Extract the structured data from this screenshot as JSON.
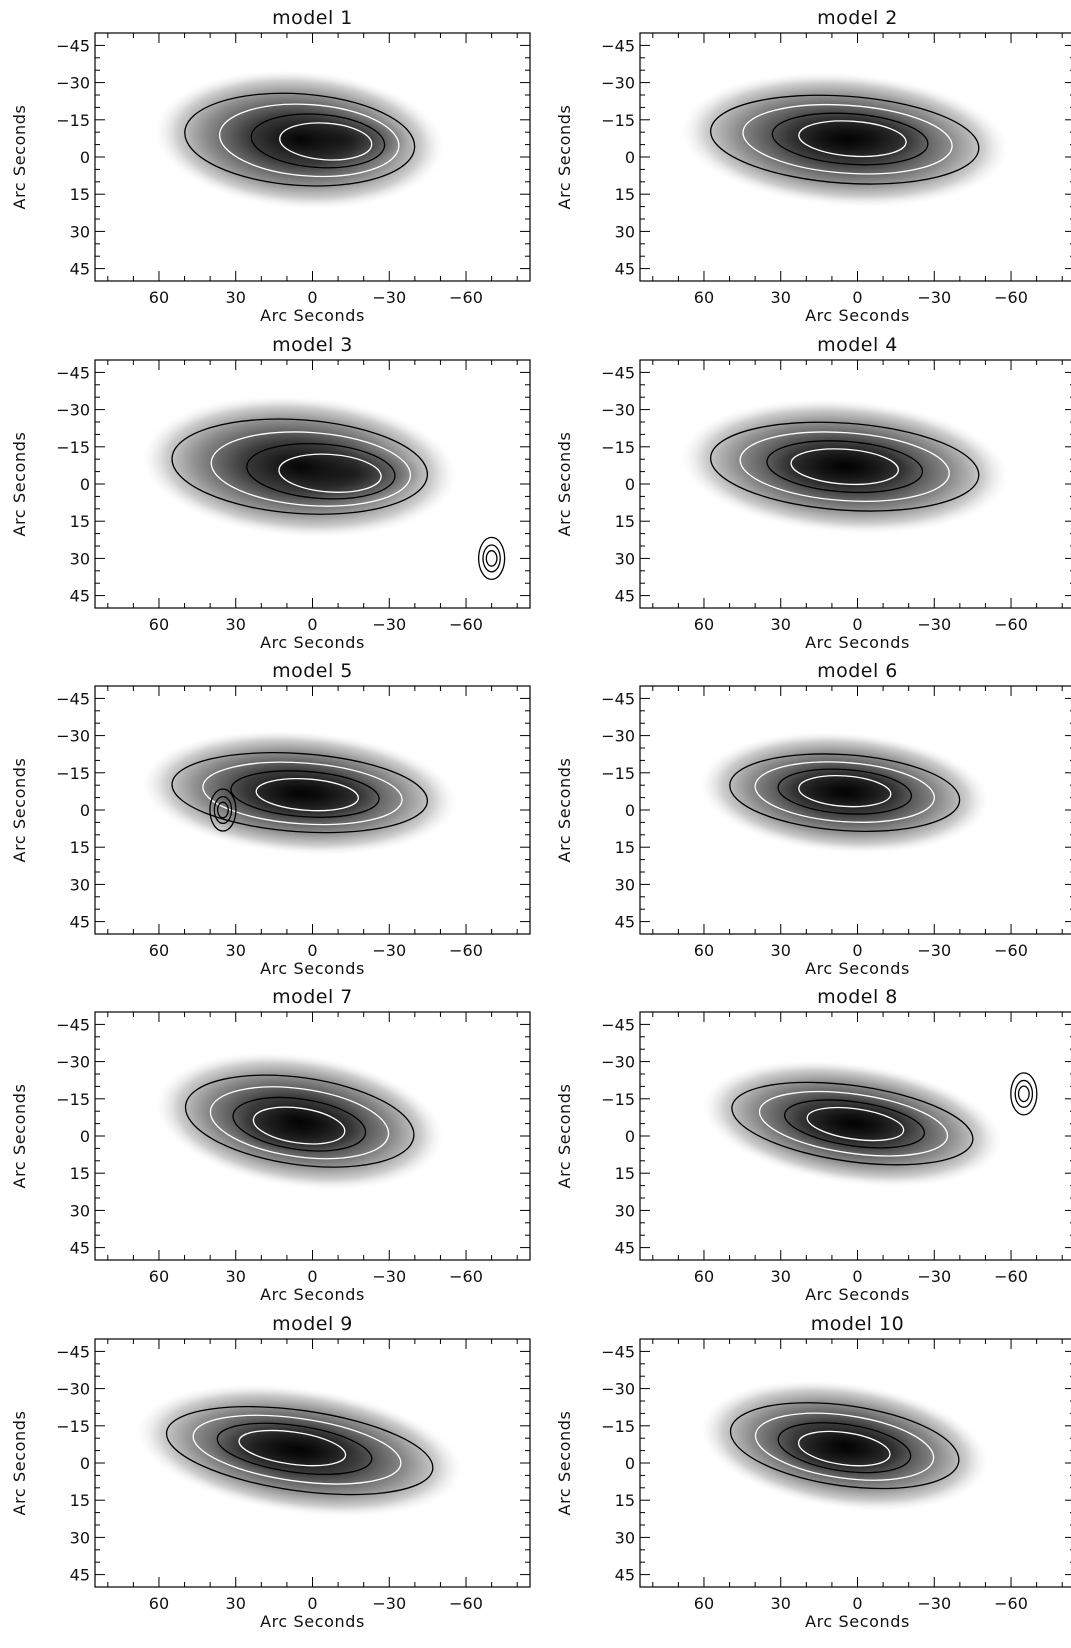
{
  "chart_data": [
    {
      "type": "heatmap",
      "title": "model 1",
      "xlabel": "Arc Seconds",
      "ylabel": "Arc Seconds",
      "xlim": [
        85,
        -85
      ],
      "ylim": [
        -50,
        50
      ],
      "x_ticks": [
        60,
        30,
        0,
        -30,
        -60
      ],
      "y_ticks": [
        -45,
        -30,
        -15,
        0,
        15,
        30,
        45
      ],
      "inverted_x": true,
      "inverted_y": true,
      "colormap": "grayscale",
      "contours": "black and white contour lines",
      "emission": {
        "center": [
          5,
          -7
        ],
        "extent_x": [
          48,
          -42
        ],
        "extent_y": [
          -27,
          14
        ],
        "peak": [
          -12,
          -7
        ]
      }
    },
    {
      "type": "heatmap",
      "title": "model 2",
      "xlabel": "Arc Seconds",
      "ylabel": "Arc Seconds",
      "xlim": [
        85,
        -85
      ],
      "ylim": [
        -50,
        50
      ],
      "x_ticks": [
        60,
        30,
        0,
        -30,
        -60
      ],
      "y_ticks": [
        -45,
        -30,
        -15,
        0,
        15,
        30,
        45
      ],
      "inverted_x": true,
      "inverted_y": true,
      "colormap": "grayscale",
      "contours": "black and white contour lines",
      "emission": {
        "center": [
          5,
          -7
        ],
        "extent_x": [
          50,
          -55
        ],
        "extent_y": [
          -25,
          14
        ],
        "peak": [
          0,
          -8
        ]
      }
    },
    {
      "type": "heatmap",
      "title": "model 3",
      "xlabel": "Arc Seconds",
      "ylabel": "Arc Seconds",
      "xlim": [
        85,
        -85
      ],
      "ylim": [
        -50,
        50
      ],
      "x_ticks": [
        60,
        30,
        0,
        -30,
        -60
      ],
      "y_ticks": [
        -45,
        -30,
        -15,
        0,
        15,
        30,
        45
      ],
      "inverted_x": true,
      "inverted_y": true,
      "colormap": "grayscale",
      "contours": "black and white contour lines",
      "emission": {
        "center": [
          5,
          -7
        ],
        "extent_x": [
          50,
          -50
        ],
        "extent_y": [
          -27,
          15
        ],
        "peak": [
          -15,
          -4
        ]
      },
      "extra_feature": {
        "x": -70,
        "y": 30
      }
    },
    {
      "type": "heatmap",
      "title": "model 4",
      "xlabel": "Arc Seconds",
      "ylabel": "Arc Seconds",
      "xlim": [
        85,
        -85
      ],
      "ylim": [
        -50,
        50
      ],
      "x_ticks": [
        60,
        30,
        0,
        -30,
        -60
      ],
      "y_ticks": [
        -45,
        -30,
        -15,
        0,
        15,
        30,
        45
      ],
      "inverted_x": true,
      "inverted_y": true,
      "colormap": "grayscale",
      "contours": "black and white contour lines",
      "emission": {
        "center": [
          5,
          -7
        ],
        "extent_x": [
          55,
          -50
        ],
        "extent_y": [
          -27,
          12
        ],
        "peak": [
          5,
          -7
        ]
      }
    },
    {
      "type": "heatmap",
      "title": "model 5",
      "xlabel": "Arc Seconds",
      "ylabel": "Arc Seconds",
      "xlim": [
        85,
        -85
      ],
      "ylim": [
        -50,
        50
      ],
      "x_ticks": [
        60,
        30,
        0,
        -30,
        -60
      ],
      "y_ticks": [
        -45,
        -30,
        -15,
        0,
        15,
        30,
        45
      ],
      "inverted_x": true,
      "inverted_y": true,
      "colormap": "grayscale",
      "contours": "black and white contour lines",
      "emission": {
        "center": [
          5,
          -7
        ],
        "extent_x": [
          45,
          -55
        ],
        "extent_y": [
          -25,
          10
        ],
        "peak": [
          0,
          -6
        ]
      },
      "extra_feature": {
        "x": 35,
        "y": 0
      }
    },
    {
      "type": "heatmap",
      "title": "model 6",
      "xlabel": "Arc Seconds",
      "ylabel": "Arc Seconds",
      "xlim": [
        85,
        -85
      ],
      "ylim": [
        -50,
        50
      ],
      "x_ticks": [
        60,
        30,
        0,
        -30,
        -60
      ],
      "y_ticks": [
        -45,
        -30,
        -15,
        0,
        15,
        30,
        45
      ],
      "inverted_x": true,
      "inverted_y": true,
      "colormap": "grayscale",
      "contours": "black and white contour lines",
      "emission": {
        "center": [
          5,
          -7
        ],
        "extent_x": [
          45,
          -45
        ],
        "extent_y": [
          -24,
          10
        ],
        "peak": [
          5,
          -8
        ]
      }
    },
    {
      "type": "heatmap",
      "title": "model 7",
      "xlabel": "Arc Seconds",
      "ylabel": "Arc Seconds",
      "xlim": [
        85,
        -85
      ],
      "ylim": [
        -50,
        50
      ],
      "x_ticks": [
        60,
        30,
        0,
        -30,
        -60
      ],
      "y_ticks": [
        -45,
        -30,
        -15,
        0,
        15,
        30,
        45
      ],
      "inverted_x": true,
      "inverted_y": true,
      "colormap": "grayscale",
      "contours": "black and white contour lines",
      "emission": {
        "center": [
          5,
          -6
        ],
        "extent_x": [
          45,
          -45
        ],
        "extent_y": [
          -25,
          14
        ],
        "peak": [
          5,
          -3
        ]
      }
    },
    {
      "type": "heatmap",
      "title": "model 8",
      "xlabel": "Arc Seconds",
      "ylabel": "Arc Seconds",
      "xlim": [
        85,
        -85
      ],
      "ylim": [
        -50,
        50
      ],
      "x_ticks": [
        60,
        30,
        0,
        -30,
        -60
      ],
      "y_ticks": [
        -45,
        -30,
        -15,
        0,
        15,
        30,
        45
      ],
      "inverted_x": true,
      "inverted_y": true,
      "colormap": "grayscale",
      "contours": "black and white contour lines",
      "emission": {
        "center": [
          2,
          -5
        ],
        "extent_x": [
          45,
          -50
        ],
        "extent_y": [
          -22,
          12
        ],
        "peak": [
          0,
          -5
        ]
      },
      "extra_feature": {
        "x": -65,
        "y": -17
      }
    },
    {
      "type": "heatmap",
      "title": "model 9",
      "xlabel": "Arc Seconds",
      "ylabel": "Arc Seconds",
      "xlim": [
        85,
        -85
      ],
      "ylim": [
        -50,
        50
      ],
      "x_ticks": [
        60,
        30,
        0,
        -30,
        -60
      ],
      "y_ticks": [
        -45,
        -30,
        -15,
        0,
        15,
        30,
        45
      ],
      "inverted_x": true,
      "inverted_y": true,
      "colormap": "grayscale",
      "contours": "black and white contour lines",
      "emission": {
        "center": [
          5,
          -5
        ],
        "extent_x": [
          55,
          -50
        ],
        "extent_y": [
          -22,
          14
        ],
        "peak": [
          10,
          -6
        ]
      }
    },
    {
      "type": "heatmap",
      "title": "model 10",
      "xlabel": "Arc Seconds",
      "ylabel": "Arc Seconds",
      "xlim": [
        85,
        -85
      ],
      "ylim": [
        -50,
        50
      ],
      "x_ticks": [
        60,
        30,
        0,
        -30,
        -60
      ],
      "y_ticks": [
        -45,
        -30,
        -15,
        0,
        15,
        30,
        45
      ],
      "inverted_x": true,
      "inverted_y": true,
      "colormap": "grayscale",
      "contours": "black and white contour lines",
      "emission": {
        "center": [
          5,
          -7
        ],
        "extent_x": [
          45,
          -45
        ],
        "extent_y": [
          -24,
          12
        ],
        "peak": [
          5,
          -5
        ]
      }
    }
  ]
}
